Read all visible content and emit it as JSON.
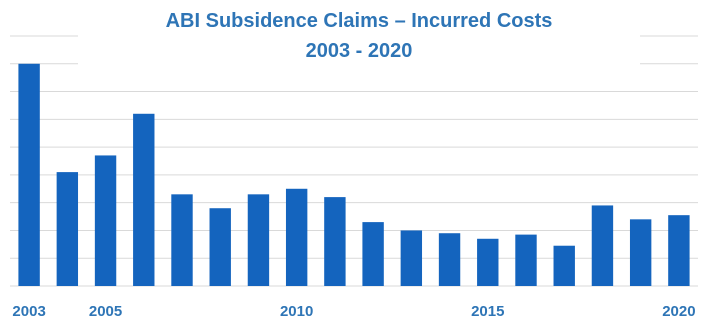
{
  "chart_data": {
    "type": "bar",
    "title": "ABI Subsidence Claims – Incurred Costs",
    "subtitle": "2003 - 2020",
    "categories": [
      "2003",
      "2004",
      "2005",
      "2006",
      "2007",
      "2008",
      "2009",
      "2010",
      "2011",
      "2012",
      "2013",
      "2014",
      "2015",
      "2016",
      "2017",
      "2018",
      "2019",
      "2020"
    ],
    "values": [
      8.0,
      4.1,
      4.7,
      6.2,
      3.3,
      2.8,
      3.3,
      3.5,
      3.2,
      2.3,
      2.0,
      1.9,
      1.7,
      1.85,
      1.45,
      2.9,
      2.4,
      2.55
    ],
    "xtick_labels": [
      {
        "year": "2003",
        "label": "2003"
      },
      {
        "year": "2005",
        "label": "2005"
      },
      {
        "year": "2010",
        "label": "2010"
      },
      {
        "year": "2015",
        "label": "2015"
      },
      {
        "year": "2020",
        "label": "2020"
      }
    ],
    "xlabel": "",
    "ylabel": "",
    "ylim": [
      0,
      9
    ],
    "grid": true,
    "legend": "none",
    "colors": {
      "bar": "#1464BE",
      "text": "#2E75B6",
      "grid": "#D9D9D9"
    }
  }
}
